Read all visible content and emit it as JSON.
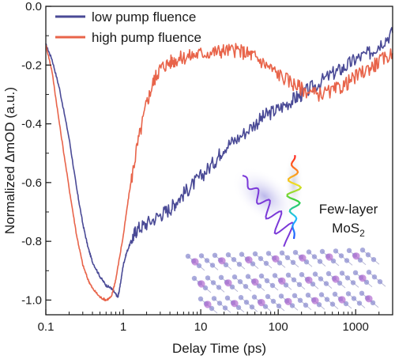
{
  "chart_data": {
    "type": "line",
    "title": "",
    "xlabel": "Delay Time (ps)",
    "ylabel": "Normalized ΔmOD (a.u.)",
    "x_scale": "log",
    "xlim": [
      0.1,
      3000
    ],
    "ylim": [
      -1.05,
      0.0
    ],
    "x_ticks": [
      0.1,
      1,
      10,
      100,
      1000
    ],
    "x_tick_labels": [
      "0.1",
      "1",
      "10",
      "100",
      "1000"
    ],
    "y_ticks": [
      -1.0,
      -0.8,
      -0.6,
      -0.4,
      -0.2,
      0.0
    ],
    "y_tick_labels": [
      "-1.0",
      "-0.8",
      "-0.6",
      "-0.4",
      "-0.2",
      "0.0"
    ],
    "grid": false,
    "legend_position": "top-left",
    "series": [
      {
        "name": "low pump fluence",
        "color": "#4a4a96",
        "x": [
          0.1,
          0.12,
          0.15,
          0.2,
          0.25,
          0.3,
          0.35,
          0.4,
          0.5,
          0.6,
          0.7,
          0.8,
          0.85,
          0.9,
          1.0,
          1.1,
          1.3,
          1.5,
          2,
          3,
          4,
          5,
          7,
          10,
          15,
          20,
          30,
          50,
          70,
          100,
          150,
          200,
          300,
          500,
          700,
          1000,
          1500,
          2000,
          3000
        ],
        "y": [
          -0.13,
          -0.18,
          -0.28,
          -0.45,
          -0.62,
          -0.74,
          -0.82,
          -0.87,
          -0.92,
          -0.95,
          -0.96,
          -0.98,
          -0.99,
          -0.96,
          -0.88,
          -0.84,
          -0.79,
          -0.76,
          -0.74,
          -0.71,
          -0.69,
          -0.66,
          -0.62,
          -0.58,
          -0.53,
          -0.48,
          -0.45,
          -0.4,
          -0.37,
          -0.35,
          -0.32,
          -0.3,
          -0.27,
          -0.23,
          -0.21,
          -0.18,
          -0.16,
          -0.13,
          -0.09
        ]
      },
      {
        "name": "high pump fluence",
        "color": "#e8644a",
        "x": [
          0.1,
          0.12,
          0.15,
          0.2,
          0.25,
          0.3,
          0.35,
          0.4,
          0.5,
          0.6,
          0.7,
          0.8,
          1.0,
          1.2,
          1.5,
          2,
          2.5,
          3,
          4,
          5,
          7,
          10,
          15,
          20,
          30,
          40,
          50,
          70,
          100,
          150,
          200,
          300,
          500,
          700,
          1000,
          1500,
          2000,
          3000
        ],
        "y": [
          -0.13,
          -0.22,
          -0.4,
          -0.62,
          -0.78,
          -0.88,
          -0.93,
          -0.96,
          -0.99,
          -1.0,
          -0.99,
          -0.93,
          -0.78,
          -0.63,
          -0.48,
          -0.33,
          -0.25,
          -0.21,
          -0.19,
          -0.18,
          -0.17,
          -0.16,
          -0.155,
          -0.15,
          -0.15,
          -0.16,
          -0.17,
          -0.2,
          -0.23,
          -0.26,
          -0.28,
          -0.3,
          -0.29,
          -0.27,
          -0.24,
          -0.21,
          -0.19,
          -0.16
        ]
      }
    ],
    "annotations": [
      {
        "text": "Few-layer"
      },
      {
        "text": "MoS",
        "subscript": "2"
      }
    ]
  }
}
